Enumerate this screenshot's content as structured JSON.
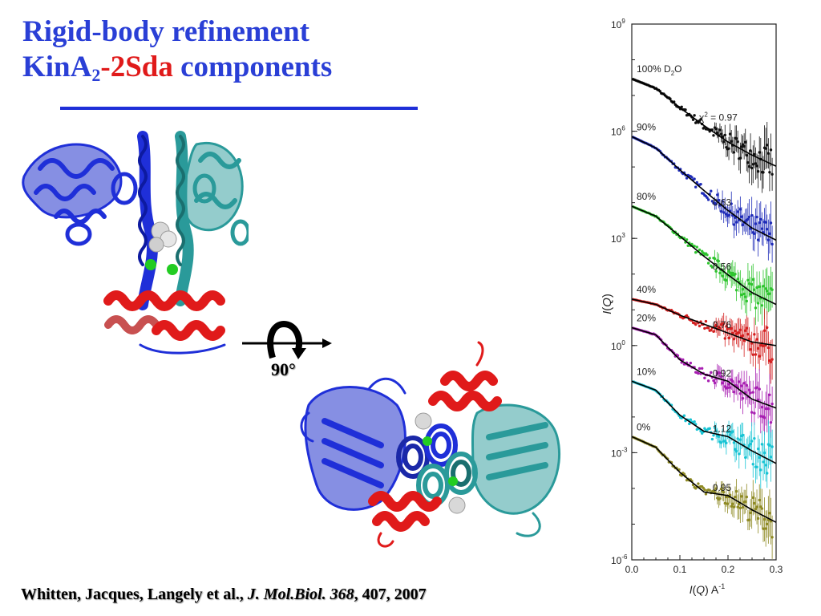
{
  "slide": {
    "title_line1": "Rigid-body refinement",
    "title_line2_part1": "KinA",
    "title_line2_sub": "2",
    "title_line2_dash": "-",
    "title_line2_red": "2Sda",
    "title_line2_part3": " components",
    "citation_authors": "Whitten, Jacques, Langely et al., ",
    "citation_journal": "J. Mol.Biol. 368",
    "citation_rest": ", 407, 2007",
    "rotation_label": "90°"
  },
  "colors": {
    "title": "#2a3fd6",
    "title_red": "#e01a1a",
    "kinA_blue": "#1f2fd8",
    "kinA_teal": "#2a9a9a",
    "sda_red": "#e01a1a"
  },
  "chart_data": {
    "type": "line",
    "title": "",
    "xlabel_i": "I",
    "xlabel_q": "Q",
    "xlabel_unit": " A",
    "xlabel_exp": "-1",
    "ylabel_i": "I",
    "ylabel_q": "Q",
    "xlim": [
      0,
      0.3
    ],
    "ylim_log10": [
      -6,
      9
    ],
    "yscale": "log",
    "xticks": [
      "0.0",
      "0.1",
      "0.2",
      "0.3"
    ],
    "yticks": [
      {
        "base": "10",
        "exp": "9",
        "log": 9
      },
      {
        "base": "10",
        "exp": "6",
        "log": 6
      },
      {
        "base": "10",
        "exp": "3",
        "log": 3
      },
      {
        "base": "10",
        "exp": "0",
        "log": 0
      },
      {
        "base": "10",
        "exp": "-3",
        "log": -3
      },
      {
        "base": "10",
        "exp": "-6",
        "log": -6
      }
    ],
    "chi_label": "χ",
    "chi_exp": "2",
    "chi_eq": " = 0.97",
    "series": [
      {
        "name": "100% D",
        "sub": "2",
        "suffix": "O",
        "chi2": "",
        "color": "#111111",
        "log_at_0": 7.47,
        "drop": 2.45,
        "dip": 0.0,
        "points": [
          [
            0.0,
            7.47
          ],
          [
            0.05,
            7.2
          ],
          [
            0.1,
            6.66
          ],
          [
            0.15,
            6.16
          ],
          [
            0.2,
            5.7
          ],
          [
            0.25,
            5.33
          ],
          [
            0.3,
            5.02
          ]
        ]
      },
      {
        "name": "90%",
        "sub": "",
        "suffix": "",
        "chi2": "0.63",
        "color": "#1e2bb8",
        "log_at_0": 5.85,
        "drop": 2.9,
        "dip": 0.0,
        "points": [
          [
            0.0,
            5.85
          ],
          [
            0.05,
            5.53
          ],
          [
            0.1,
            4.92
          ],
          [
            0.15,
            4.34
          ],
          [
            0.2,
            3.78
          ],
          [
            0.25,
            3.29
          ],
          [
            0.3,
            2.95
          ]
        ]
      },
      {
        "name": "80%",
        "sub": "",
        "suffix": "",
        "chi2": "0.56",
        "color": "#2ec42e",
        "log_at_0": 3.9,
        "drop": 2.75,
        "dip": 0.15,
        "points": [
          [
            0.0,
            3.9
          ],
          [
            0.05,
            3.62
          ],
          [
            0.1,
            3.06
          ],
          [
            0.15,
            2.5
          ],
          [
            0.2,
            1.98
          ],
          [
            0.25,
            1.48
          ],
          [
            0.3,
            1.15
          ]
        ]
      },
      {
        "name": "40%",
        "sub": "",
        "suffix": "",
        "chi2": "0.76",
        "color": "#d42020",
        "log_at_0": 1.3,
        "drop": 1.3,
        "dip": 0.1,
        "points": [
          [
            0.0,
            1.3
          ],
          [
            0.05,
            1.15
          ],
          [
            0.1,
            0.85
          ],
          [
            0.15,
            0.6
          ],
          [
            0.2,
            0.35
          ],
          [
            0.25,
            0.1
          ],
          [
            0.3,
            0.0
          ]
        ]
      },
      {
        "name": "20%",
        "sub": "",
        "suffix": "",
        "chi2": "0.92",
        "color": "#a81fb2",
        "log_at_0": 0.5,
        "drop": 2.25,
        "dip": 0.55,
        "points": [
          [
            0.0,
            0.5
          ],
          [
            0.05,
            0.3
          ],
          [
            0.1,
            -0.4
          ],
          [
            0.15,
            -0.8
          ],
          [
            0.2,
            -1.0
          ],
          [
            0.25,
            -1.5
          ],
          [
            0.3,
            -1.75
          ]
        ]
      },
      {
        "name": "10%",
        "sub": "",
        "suffix": "",
        "chi2": "1.12",
        "color": "#18c4d4",
        "log_at_0": -1.0,
        "drop": 2.3,
        "dip": 0.6,
        "points": [
          [
            0.0,
            -1.0
          ],
          [
            0.05,
            -1.25
          ],
          [
            0.1,
            -1.95
          ],
          [
            0.15,
            -2.4
          ],
          [
            0.2,
            -2.55
          ],
          [
            0.25,
            -2.95
          ],
          [
            0.3,
            -3.3
          ]
        ]
      },
      {
        "name": "0%",
        "sub": "",
        "suffix": "",
        "chi2": "0.95",
        "color": "#8f8a24",
        "log_at_0": -2.55,
        "drop": 2.4,
        "dip": 0.65,
        "points": [
          [
            0.0,
            -2.55
          ],
          [
            0.05,
            -2.85
          ],
          [
            0.1,
            -3.55
          ],
          [
            0.15,
            -4.1
          ],
          [
            0.2,
            -4.2
          ],
          [
            0.25,
            -4.6
          ],
          [
            0.3,
            -4.95
          ]
        ]
      }
    ]
  }
}
